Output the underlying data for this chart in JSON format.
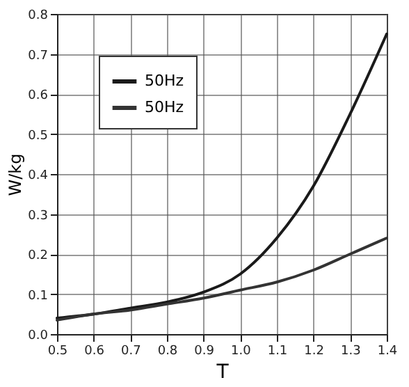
{
  "chart_data": {
    "type": "line",
    "xlabel": "T",
    "ylabel": "W/kg",
    "x": [
      0.5,
      0.6,
      0.7,
      0.8,
      0.9,
      1.0,
      1.1,
      1.2,
      1.3,
      1.4
    ],
    "series": [
      {
        "name": "50Hz",
        "color": "#1a1a1a",
        "values": [
          0.04,
          0.05,
          0.065,
          0.08,
          0.105,
          0.15,
          0.24,
          0.37,
          0.55,
          0.75
        ]
      },
      {
        "name": "50Hz",
        "color": "#333333",
        "values": [
          0.035,
          0.05,
          0.06,
          0.075,
          0.09,
          0.11,
          0.13,
          0.16,
          0.2,
          0.24
        ]
      }
    ],
    "xlim": [
      0.5,
      1.4
    ],
    "xticks": [
      0.5,
      0.6,
      0.7,
      0.8,
      0.9,
      {
        "value": 1,
        "label": "1.0"
      },
      1.1,
      1.2,
      1.3,
      1.4
    ],
    "ylim": [
      0,
      0.8
    ],
    "yticks": [
      {
        "value": 0,
        "label": "0.0"
      },
      0.1,
      0.2,
      0.3,
      0.4,
      0.5,
      0.6,
      0.7,
      0.8
    ],
    "grid": true,
    "legend": "top left",
    "marker": "none",
    "line_style": "solid"
  }
}
